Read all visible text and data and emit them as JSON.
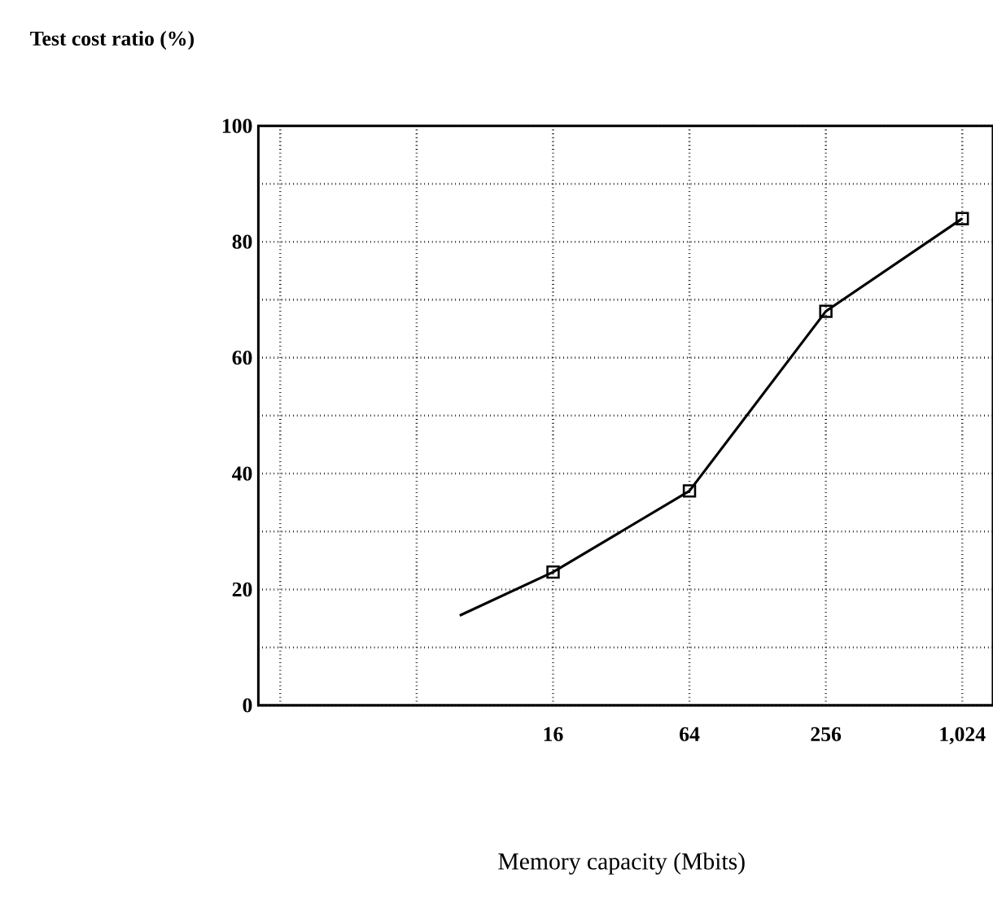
{
  "chart_data": {
    "type": "line",
    "ylabel": "Test cost ratio (%)",
    "xlabel": "Memory capacity (Mbits)",
    "log": "x",
    "series": [
      {
        "type": "line",
        "color": "#000000",
        "marker": "none",
        "x": [
          6.2,
          16,
          64,
          256,
          1024
        ],
        "values": [
          15.5,
          23,
          37,
          68,
          84
        ]
      },
      {
        "type": "scatter",
        "color": "#000000",
        "marker": "square",
        "x": [
          16,
          64,
          256,
          1024
        ],
        "values": [
          23,
          37,
          68,
          84
        ]
      }
    ],
    "xlim": [
      0.8,
      1400
    ],
    "xticks": [
      {
        "value": 1,
        "label": null
      },
      {
        "value": 4,
        "label": null
      },
      {
        "value": 16,
        "label": "16"
      },
      {
        "value": 64,
        "label": "64"
      },
      {
        "value": 256,
        "label": "256"
      },
      {
        "value": 1024,
        "label": "1,024"
      }
    ],
    "ylim": [
      0,
      100
    ],
    "yticks": [
      0,
      {
        "value": 10,
        "label": null
      },
      20,
      {
        "value": 30,
        "label": null
      },
      40,
      {
        "value": 50,
        "label": null
      },
      60,
      {
        "value": 70,
        "label": null
      },
      80,
      {
        "value": 90,
        "label": null
      },
      100
    ],
    "grid": true
  }
}
